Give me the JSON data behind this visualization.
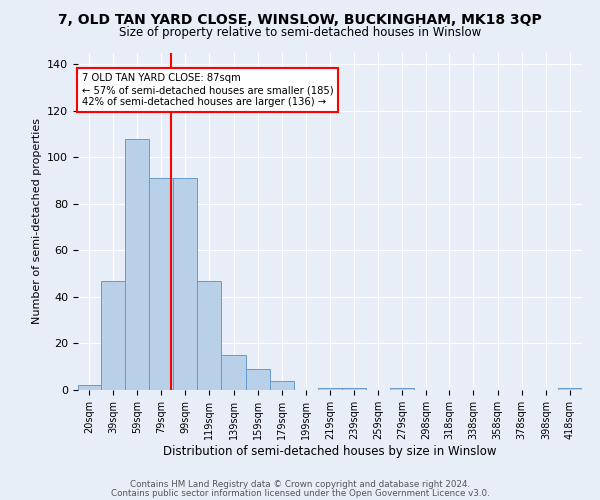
{
  "title": "7, OLD TAN YARD CLOSE, WINSLOW, BUCKINGHAM, MK18 3QP",
  "subtitle": "Size of property relative to semi-detached houses in Winslow",
  "xlabel": "Distribution of semi-detached houses by size in Winslow",
  "ylabel": "Number of semi-detached properties",
  "bar_color": "#b8d0e8",
  "bar_edge_color": "#6699cc",
  "bin_edges": [
    10,
    29,
    49,
    69,
    89,
    109,
    129,
    149,
    169,
    189,
    209,
    229,
    249,
    269,
    289,
    308,
    328,
    348,
    368,
    388,
    408,
    428
  ],
  "bar_heights": [
    2,
    47,
    108,
    91,
    91,
    47,
    15,
    9,
    4,
    0,
    1,
    1,
    0,
    1,
    0,
    0,
    0,
    0,
    0,
    0,
    1
  ],
  "tick_labels": [
    "20sqm",
    "39sqm",
    "59sqm",
    "79sqm",
    "99sqm",
    "119sqm",
    "139sqm",
    "159sqm",
    "179sqm",
    "199sqm",
    "219sqm",
    "239sqm",
    "259sqm",
    "279sqm",
    "298sqm",
    "318sqm",
    "338sqm",
    "358sqm",
    "378sqm",
    "398sqm",
    "418sqm"
  ],
  "red_line_x": 87,
  "annotation_title": "7 OLD TAN YARD CLOSE: 87sqm",
  "annotation_line1": "← 57% of semi-detached houses are smaller (185)",
  "annotation_line2": "42% of semi-detached houses are larger (136) →",
  "ylim": [
    0,
    145
  ],
  "yticks": [
    0,
    20,
    40,
    60,
    80,
    100,
    120,
    140
  ],
  "footer1": "Contains HM Land Registry data © Crown copyright and database right 2024.",
  "footer2": "Contains public sector information licensed under the Open Government Licence v3.0.",
  "bg_color": "#e8eef8",
  "plot_bg_color": "#e8eef8"
}
